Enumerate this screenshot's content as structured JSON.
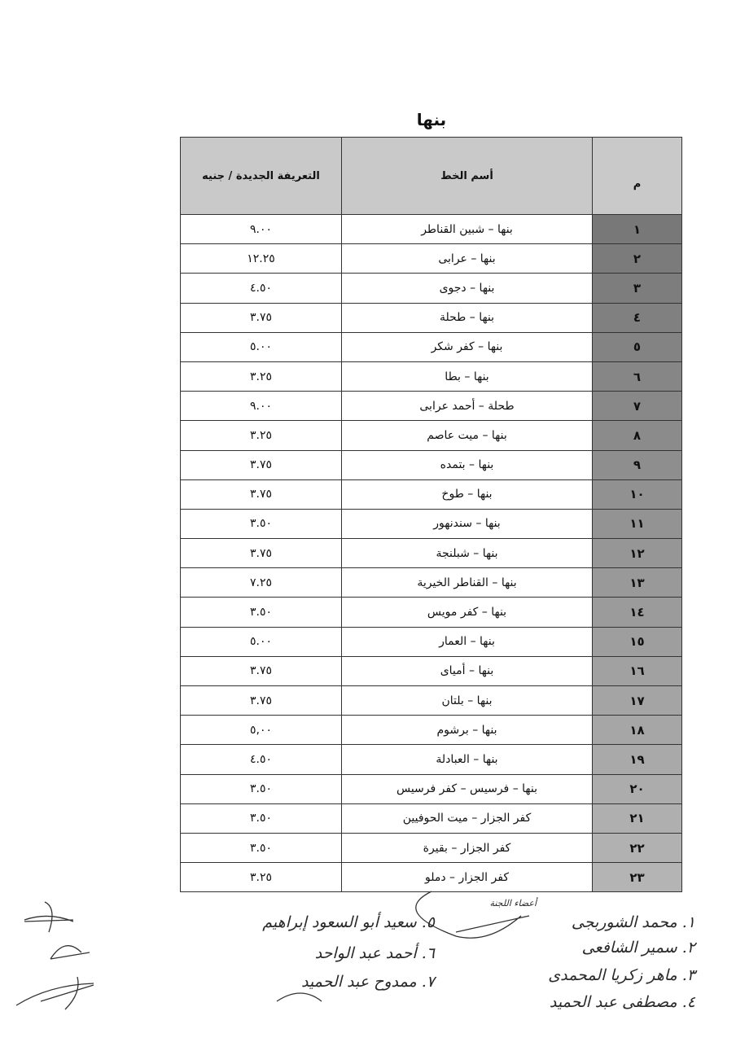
{
  "title": "بنها",
  "table": {
    "headers": {
      "num": "م",
      "name": "أسم الخط",
      "price": "التعريفة الجديدة / جنيه"
    },
    "rows": [
      {
        "num": "١",
        "name": "بنها – شبين القناطر",
        "price": "٩.٠٠"
      },
      {
        "num": "٢",
        "name": "بنها – عرابى",
        "price": "١٢.٢٥"
      },
      {
        "num": "٣",
        "name": "بنها – دجوى",
        "price": "٤.٥٠"
      },
      {
        "num": "٤",
        "name": "بنها – طحلة",
        "price": "٣.٧٥"
      },
      {
        "num": "٥",
        "name": "بنها – كفر شكر",
        "price": "٥.٠٠"
      },
      {
        "num": "٦",
        "name": "بنها – بطا",
        "price": "٣.٢٥"
      },
      {
        "num": "٧",
        "name": "طحلة – أحمد عرابى",
        "price": "٩.٠٠"
      },
      {
        "num": "٨",
        "name": "بنها – ميت عاصم",
        "price": "٣.٢٥"
      },
      {
        "num": "٩",
        "name": "بنها – بتمده",
        "price": "٣.٧٥"
      },
      {
        "num": "١٠",
        "name": "بنها – طوخ",
        "price": "٣.٧٥"
      },
      {
        "num": "١١",
        "name": "بنها – سندنهور",
        "price": "٣.٥٠"
      },
      {
        "num": "١٢",
        "name": "بنها – شبلنجة",
        "price": "٣.٧٥"
      },
      {
        "num": "١٣",
        "name": "بنها – القناطر الخيرية",
        "price": "٧.٢٥"
      },
      {
        "num": "١٤",
        "name": "بنها – كفر مويس",
        "price": "٣.٥٠"
      },
      {
        "num": "١٥",
        "name": "بنها – العمار",
        "price": "٥.٠٠"
      },
      {
        "num": "١٦",
        "name": "بنها – أمياى",
        "price": "٣.٧٥"
      },
      {
        "num": "١٧",
        "name": "بنها – بلتان",
        "price": "٣.٧٥"
      },
      {
        "num": "١٨",
        "name": "بنها – برشوم",
        "price": "٥,٠٠"
      },
      {
        "num": "١٩",
        "name": "بنها – العبادلة",
        "price": "٤.٥٠"
      },
      {
        "num": "٢٠",
        "name": "بنها – فرسيس – كفر فرسيس",
        "price": "٣.٥٠"
      },
      {
        "num": "٢١",
        "name": "كفر الجزار – ميت الحوفيين",
        "price": "٣.٥٠"
      },
      {
        "num": "٢٢",
        "name": "كفر الجزار – بقيرة",
        "price": "٣.٥٠"
      },
      {
        "num": "٢٣",
        "name": "كفر الجزار – دملو",
        "price": "٣.٢٥"
      }
    ]
  },
  "signatures": {
    "heading": "أعضاء اللجنة",
    "names": [
      "١. محمد الشوربجى",
      "٢. سمير الشافعى",
      "٣. ماهر زكريا المحمدى",
      "٤. مصطفى عبد الحميد",
      "٥. سعيد أبو السعود إبراهيم",
      "٦. أحمد عبد الواحد",
      "٧. ممدوح عبد الحميد"
    ]
  }
}
